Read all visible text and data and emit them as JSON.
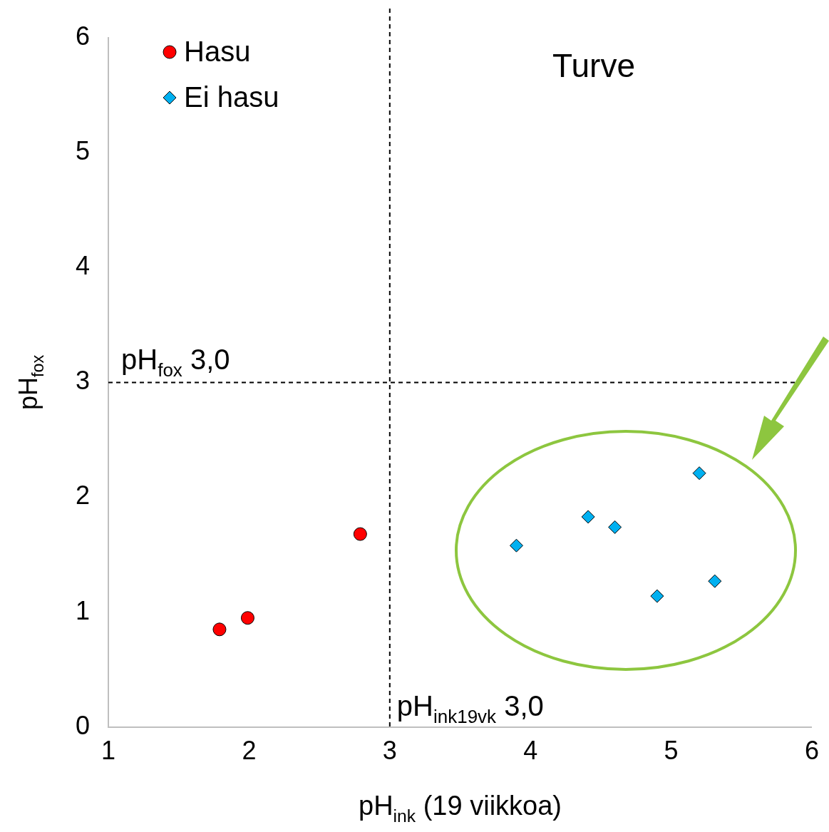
{
  "chart_data": {
    "type": "scatter",
    "xlabel": "pH$_{ink}$ (19 viikkoa)",
    "ylabel": "pH$_{fox}$",
    "xlim": [
      1,
      6
    ],
    "xticks": [
      1,
      2,
      3,
      4,
      5,
      6
    ],
    "ylim": [
      0,
      6
    ],
    "yticks": [
      0,
      1,
      2,
      3,
      4,
      5,
      6
    ],
    "grid": false,
    "legend": "top left",
    "series": [
      {
        "name": "Hasu",
        "color": "#ff0000",
        "marker": "circle",
        "x": [
          1.79,
          1.99,
          2.79
        ],
        "values": [
          0.85,
          0.95,
          1.68
        ]
      },
      {
        "name": "Ei hasu",
        "color": "#00b0f0",
        "marker": "diamond",
        "x": [
          3.9,
          4.41,
          4.6,
          5.2,
          4.9,
          5.31
        ],
        "values": [
          1.58,
          1.83,
          1.74,
          2.21,
          1.14,
          1.27
        ]
      }
    ],
    "ref_lines": [
      {
        "axis": "x",
        "value": 3,
        "label": "pH$_{ink19vk}$ 3,0",
        "line_style": "dashed",
        "color": "#000000"
      },
      {
        "axis": "y",
        "value": 3,
        "label": "pH$_{fox}$ 3,0",
        "line_style": "dashed",
        "color": "#000000"
      }
    ],
    "annotations": [
      "Turve"
    ]
  }
}
